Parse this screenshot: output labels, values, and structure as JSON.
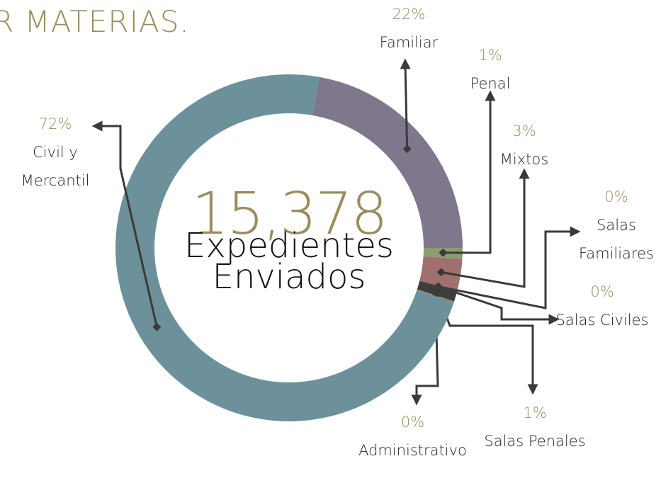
{
  "chart_data": {
    "type": "pie",
    "title": "R MATERIAS.",
    "center_value": "15,378",
    "center_text": "Expedientes Enviados",
    "categories": [
      "Familiar",
      "Penal",
      "Mixtos",
      "Salas Familiares",
      "Salas Civiles",
      "Salas Penales",
      "Administrativo",
      "Civil y Mercantil"
    ],
    "values": [
      22,
      1,
      3,
      0,
      0,
      1,
      0,
      72
    ],
    "value_labels": [
      "22%",
      "1%",
      "3%",
      "0%",
      "0%",
      "1%",
      "0%",
      "72%"
    ],
    "colors": [
      "#7f788c",
      "#8a9e6e",
      "#a0706e",
      "#b03040",
      "#4a4a4a",
      "#3e3e3e",
      "#d08a4a",
      "#6c919a"
    ]
  }
}
